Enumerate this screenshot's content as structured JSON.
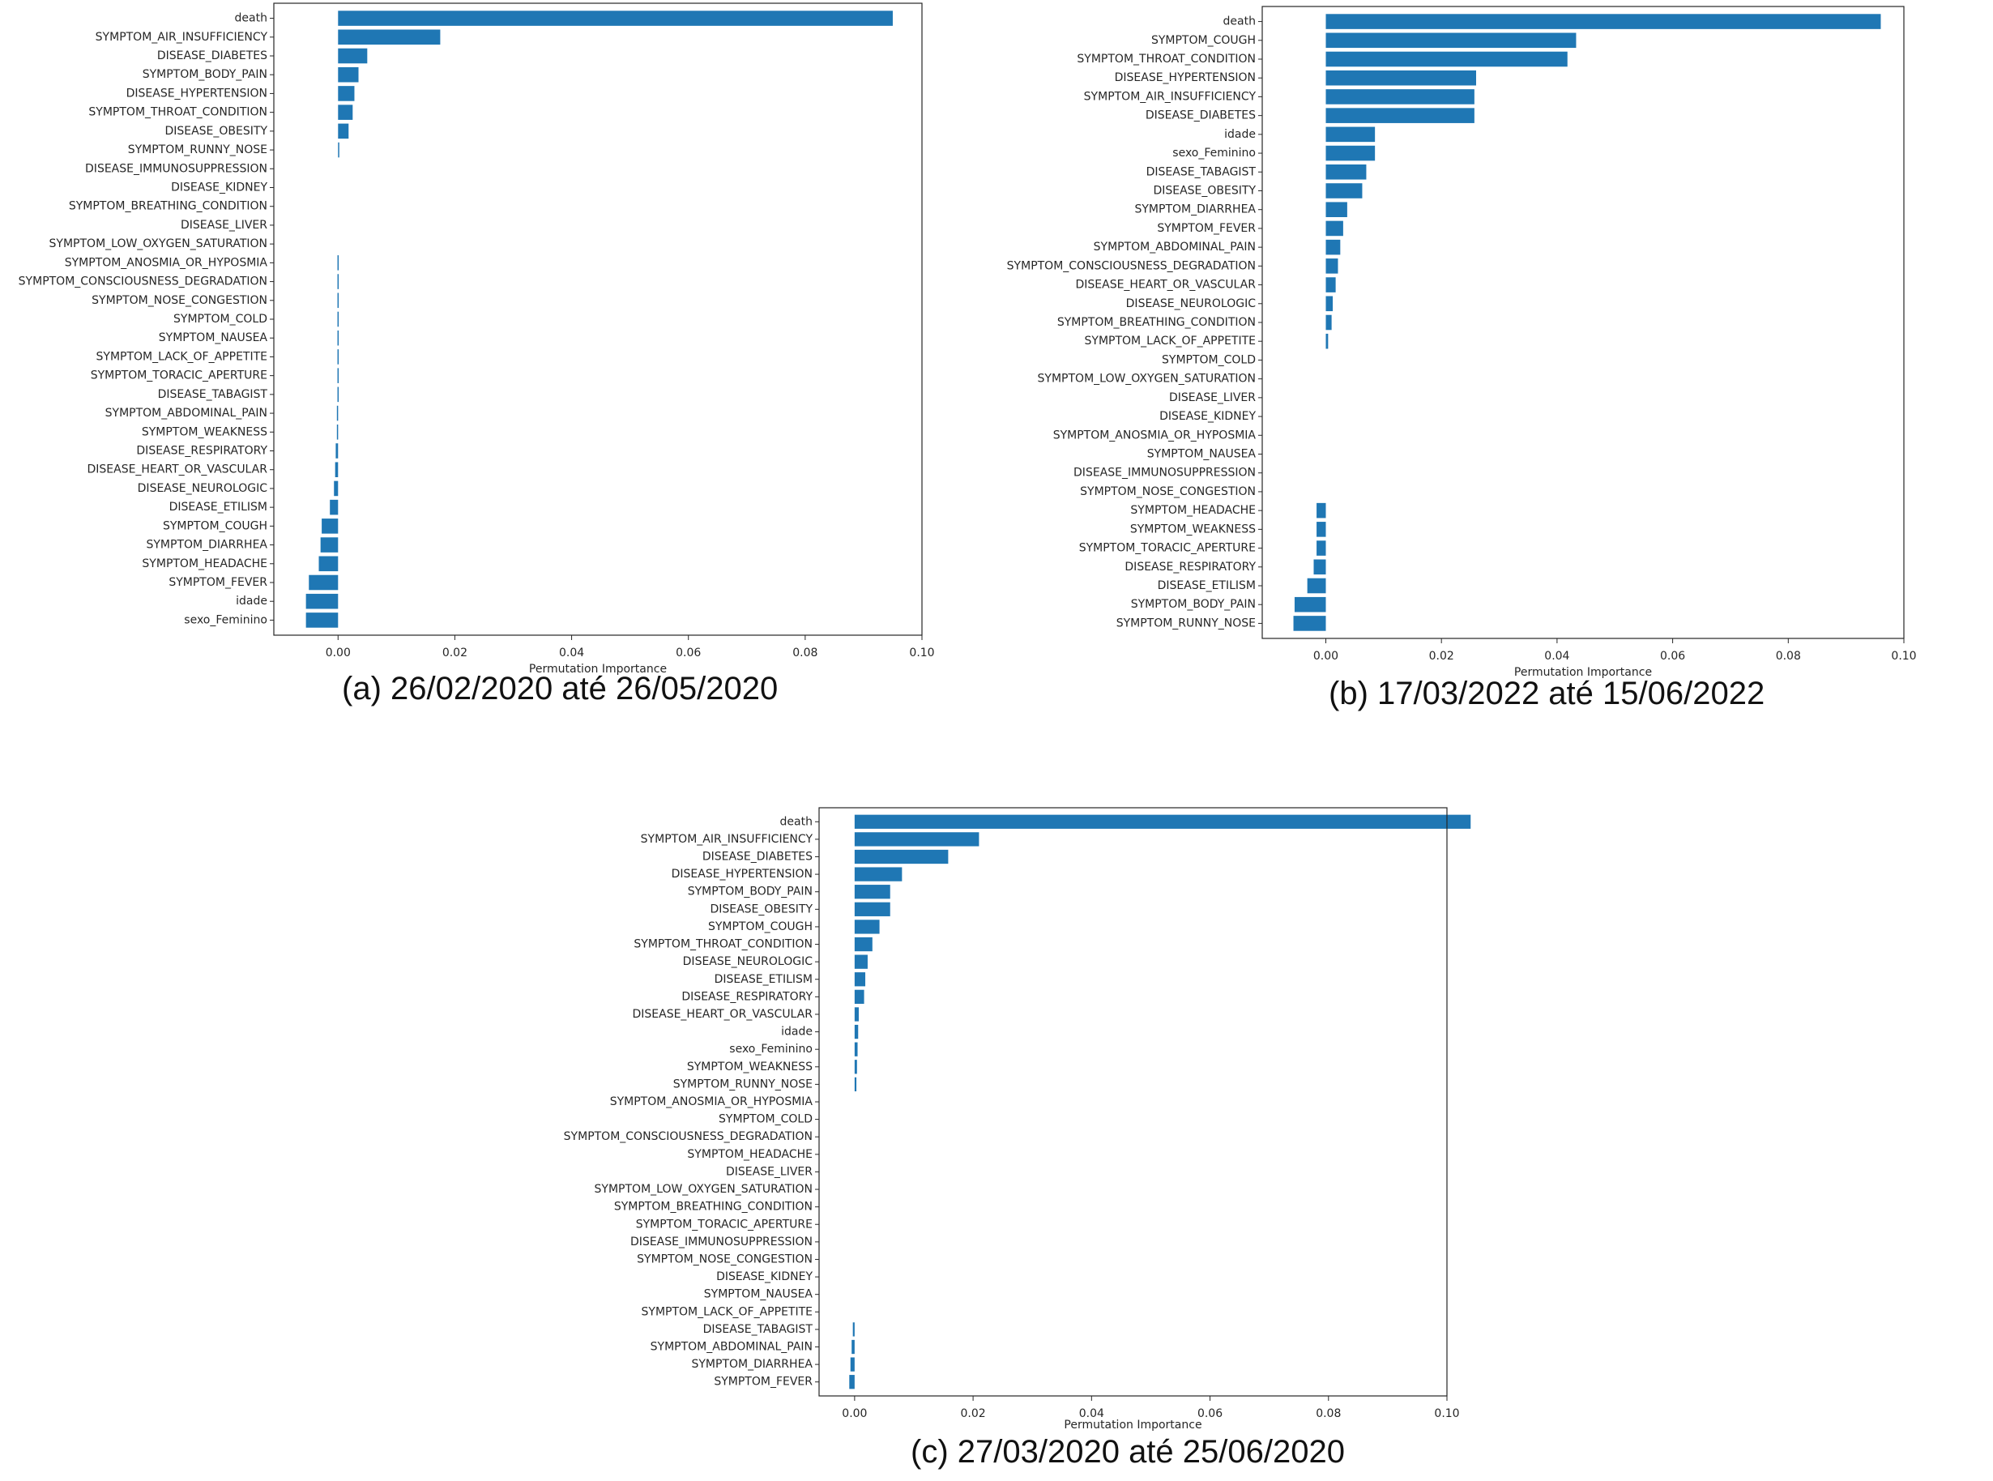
{
  "bar_color": "#1f77b4",
  "captions": {
    "a": "(a) 26/02/2020 até 26/05/2020",
    "b": "(b) 17/03/2022 até 15/06/2022",
    "c": "(c) 27/03/2020 até 25/06/2020"
  },
  "chart_data": [
    {
      "type": "bar",
      "orientation": "horizontal",
      "title": "",
      "xlabel": "Permutation Importance",
      "ylabel": "",
      "xlim": [
        -0.011,
        0.1
      ],
      "xticks": [
        "0.00",
        "0.02",
        "0.04",
        "0.06",
        "0.08",
        "0.10"
      ],
      "xtick_values": [
        0,
        0.02,
        0.04,
        0.06,
        0.08,
        0.1
      ],
      "grid": false,
      "categories": [
        "death",
        "SYMPTOM_AIR_INSUFFICIENCY",
        "DISEASE_DIABETES",
        "SYMPTOM_BODY_PAIN",
        "DISEASE_HYPERTENSION",
        "SYMPTOM_THROAT_CONDITION",
        "DISEASE_OBESITY",
        "SYMPTOM_RUNNY_NOSE",
        "DISEASE_IMMUNOSUPPRESSION",
        "DISEASE_KIDNEY",
        "SYMPTOM_BREATHING_CONDITION",
        "DISEASE_LIVER",
        "SYMPTOM_LOW_OXYGEN_SATURATION",
        "SYMPTOM_ANOSMIA_OR_HYPOSMIA",
        "SYMPTOM_CONSCIOUSNESS_DEGRADATION",
        "SYMPTOM_NOSE_CONGESTION",
        "SYMPTOM_COLD",
        "SYMPTOM_NAUSEA",
        "SYMPTOM_LACK_OF_APPETITE",
        "SYMPTOM_TORACIC_APERTURE",
        "DISEASE_TABAGIST",
        "SYMPTOM_ABDOMINAL_PAIN",
        "SYMPTOM_WEAKNESS",
        "DISEASE_RESPIRATORY",
        "DISEASE_HEART_OR_VASCULAR",
        "DISEASE_NEUROLOGIC",
        "DISEASE_ETILISM",
        "SYMPTOM_COUGH",
        "SYMPTOM_DIARRHEA",
        "SYMPTOM_HEADACHE",
        "SYMPTOM_FEVER",
        "idade",
        "sexo_Feminino"
      ],
      "values": [
        0.095,
        0.0175,
        0.005,
        0.0035,
        0.0028,
        0.0025,
        0.0018,
        0.0002,
        0,
        0,
        0,
        0,
        0,
        -0.0001,
        -0.0001,
        -0.0001,
        -0.0001,
        -0.0001,
        -0.0001,
        -0.0001,
        -0.0001,
        -0.0002,
        -0.0002,
        -0.0004,
        -0.0005,
        -0.0007,
        -0.0014,
        -0.0028,
        -0.003,
        -0.0033,
        -0.005,
        -0.0055,
        -0.0055
      ]
    },
    {
      "type": "bar",
      "orientation": "horizontal",
      "title": "",
      "xlabel": "Permutation Importance",
      "ylabel": "",
      "xlim": [
        -0.011,
        0.1
      ],
      "xticks": [
        "0.00",
        "0.02",
        "0.04",
        "0.06",
        "0.08",
        "0.10"
      ],
      "xtick_values": [
        0,
        0.02,
        0.04,
        0.06,
        0.08,
        0.1
      ],
      "grid": false,
      "categories": [
        "death",
        "SYMPTOM_COUGH",
        "SYMPTOM_THROAT_CONDITION",
        "DISEASE_HYPERTENSION",
        "SYMPTOM_AIR_INSUFFICIENCY",
        "DISEASE_DIABETES",
        "idade",
        "sexo_Feminino",
        "DISEASE_TABAGIST",
        "DISEASE_OBESITY",
        "SYMPTOM_DIARRHEA",
        "SYMPTOM_FEVER",
        "SYMPTOM_ABDOMINAL_PAIN",
        "SYMPTOM_CONSCIOUSNESS_DEGRADATION",
        "DISEASE_HEART_OR_VASCULAR",
        "DISEASE_NEUROLOGIC",
        "SYMPTOM_BREATHING_CONDITION",
        "SYMPTOM_LACK_OF_APPETITE",
        "SYMPTOM_COLD",
        "SYMPTOM_LOW_OXYGEN_SATURATION",
        "DISEASE_LIVER",
        "DISEASE_KIDNEY",
        "SYMPTOM_ANOSMIA_OR_HYPOSMIA",
        "SYMPTOM_NAUSEA",
        "DISEASE_IMMUNOSUPPRESSION",
        "SYMPTOM_NOSE_CONGESTION",
        "SYMPTOM_HEADACHE",
        "SYMPTOM_WEAKNESS",
        "SYMPTOM_TORACIC_APERTURE",
        "DISEASE_RESPIRATORY",
        "DISEASE_ETILISM",
        "SYMPTOM_BODY_PAIN",
        "SYMPTOM_RUNNY_NOSE"
      ],
      "values": [
        0.096,
        0.0433,
        0.0418,
        0.026,
        0.0257,
        0.0257,
        0.0085,
        0.0085,
        0.007,
        0.0063,
        0.0037,
        0.003,
        0.0025,
        0.0021,
        0.0017,
        0.0012,
        0.001,
        0.0004,
        0,
        0,
        0,
        0,
        0,
        0,
        0,
        0,
        -0.0016,
        -0.0016,
        -0.0016,
        -0.0021,
        -0.0032,
        -0.0054,
        -0.0056
      ]
    },
    {
      "type": "bar",
      "orientation": "horizontal",
      "title": "",
      "xlabel": "Permutation Importance",
      "ylabel": "",
      "xlim": [
        -0.006,
        0.1
      ],
      "xticks": [
        "0.00",
        "0.02",
        "0.04",
        "0.06",
        "0.08",
        "0.10"
      ],
      "xtick_values": [
        0,
        0.02,
        0.04,
        0.06,
        0.08,
        0.1
      ],
      "grid": false,
      "categories": [
        "death",
        "SYMPTOM_AIR_INSUFFICIENCY",
        "DISEASE_DIABETES",
        "DISEASE_HYPERTENSION",
        "SYMPTOM_BODY_PAIN",
        "DISEASE_OBESITY",
        "SYMPTOM_COUGH",
        "SYMPTOM_THROAT_CONDITION",
        "DISEASE_NEUROLOGIC",
        "DISEASE_ETILISM",
        "DISEASE_RESPIRATORY",
        "DISEASE_HEART_OR_VASCULAR",
        "idade",
        "sexo_Feminino",
        "SYMPTOM_WEAKNESS",
        "SYMPTOM_RUNNY_NOSE",
        "SYMPTOM_ANOSMIA_OR_HYPOSMIA",
        "SYMPTOM_COLD",
        "SYMPTOM_CONSCIOUSNESS_DEGRADATION",
        "SYMPTOM_HEADACHE",
        "DISEASE_LIVER",
        "SYMPTOM_LOW_OXYGEN_SATURATION",
        "SYMPTOM_BREATHING_CONDITION",
        "SYMPTOM_TORACIC_APERTURE",
        "DISEASE_IMMUNOSUPPRESSION",
        "SYMPTOM_NOSE_CONGESTION",
        "DISEASE_KIDNEY",
        "SYMPTOM_NAUSEA",
        "SYMPTOM_LACK_OF_APPETITE",
        "DISEASE_TABAGIST",
        "SYMPTOM_ABDOMINAL_PAIN",
        "SYMPTOM_DIARRHEA",
        "SYMPTOM_FEVER"
      ],
      "values": [
        0.104,
        0.021,
        0.0158,
        0.008,
        0.006,
        0.006,
        0.0042,
        0.003,
        0.0022,
        0.0018,
        0.0016,
        0.0007,
        0.0006,
        0.0005,
        0.0004,
        0.0003,
        0,
        0,
        0,
        0,
        0,
        0,
        0,
        0,
        0,
        0,
        0,
        0,
        0,
        -0.0003,
        -0.0005,
        -0.0007,
        -0.0009
      ]
    }
  ]
}
